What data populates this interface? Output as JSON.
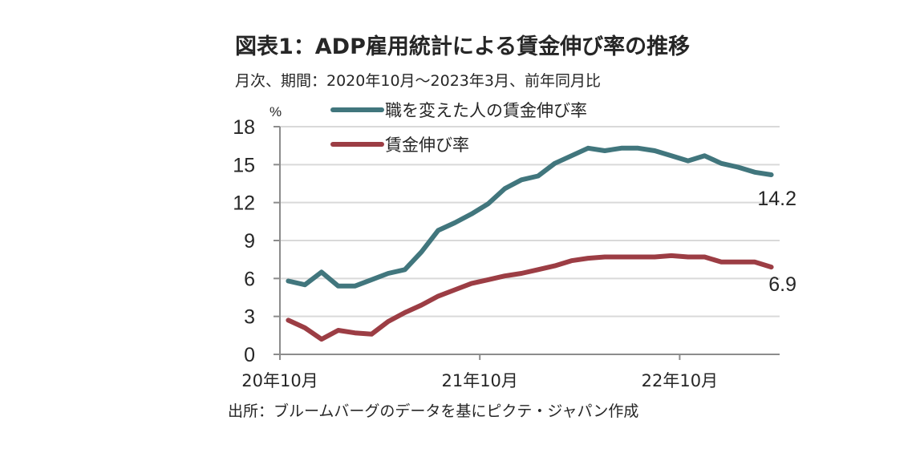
{
  "header": {
    "title": "図表1：ADP雇用統計による賃金伸び率の推移",
    "subtitle": "月次、期間：2020年10月〜2023年3月、前年同月比"
  },
  "footer": {
    "source": "出所：ブルームバーグのデータを基にピクテ・ジャパン作成"
  },
  "chart_data": {
    "type": "line",
    "title": "図表1：ADP雇用統計による賃金伸び率の推移",
    "subtitle": "月次、期間：2020年10月〜2023年3月、前年同月比",
    "xlabel": "",
    "ylabel": "%",
    "unit_label": "%",
    "ylim": [
      0,
      18
    ],
    "yticks": [
      0,
      3,
      6,
      9,
      12,
      15,
      18
    ],
    "grid": true,
    "legend_position": "top-center",
    "x": [
      "2020-10",
      "2020-11",
      "2020-12",
      "2021-01",
      "2021-02",
      "2021-03",
      "2021-04",
      "2021-05",
      "2021-06",
      "2021-07",
      "2021-08",
      "2021-09",
      "2021-10",
      "2021-11",
      "2021-12",
      "2022-01",
      "2022-02",
      "2022-03",
      "2022-04",
      "2022-05",
      "2022-06",
      "2022-07",
      "2022-08",
      "2022-09",
      "2022-10",
      "2022-11",
      "2022-12",
      "2023-01",
      "2023-02",
      "2023-03"
    ],
    "xtick_labels": [
      {
        "index": 0,
        "label": "20年10月"
      },
      {
        "index": 12,
        "label": "21年10月"
      },
      {
        "index": 24,
        "label": "22年10月"
      }
    ],
    "series": [
      {
        "name": "職を変えた人の賃金伸び率",
        "color": "#41767D",
        "end_label": "14.2",
        "values": [
          5.8,
          5.5,
          6.5,
          5.4,
          5.4,
          5.9,
          6.4,
          6.7,
          8.1,
          9.8,
          10.4,
          11.1,
          11.9,
          13.1,
          13.8,
          14.1,
          15.1,
          15.7,
          16.3,
          16.1,
          16.3,
          16.3,
          16.1,
          15.7,
          15.3,
          15.7,
          15.1,
          14.8,
          14.4,
          14.2
        ]
      },
      {
        "name": "賃金伸び率",
        "color": "#9C3D44",
        "end_label": "6.9",
        "values": [
          2.7,
          2.1,
          1.2,
          1.9,
          1.7,
          1.6,
          2.6,
          3.3,
          3.9,
          4.6,
          5.1,
          5.6,
          5.9,
          6.2,
          6.4,
          6.7,
          7.0,
          7.4,
          7.6,
          7.7,
          7.7,
          7.7,
          7.7,
          7.8,
          7.7,
          7.7,
          7.3,
          7.3,
          7.3,
          6.9
        ]
      }
    ]
  }
}
